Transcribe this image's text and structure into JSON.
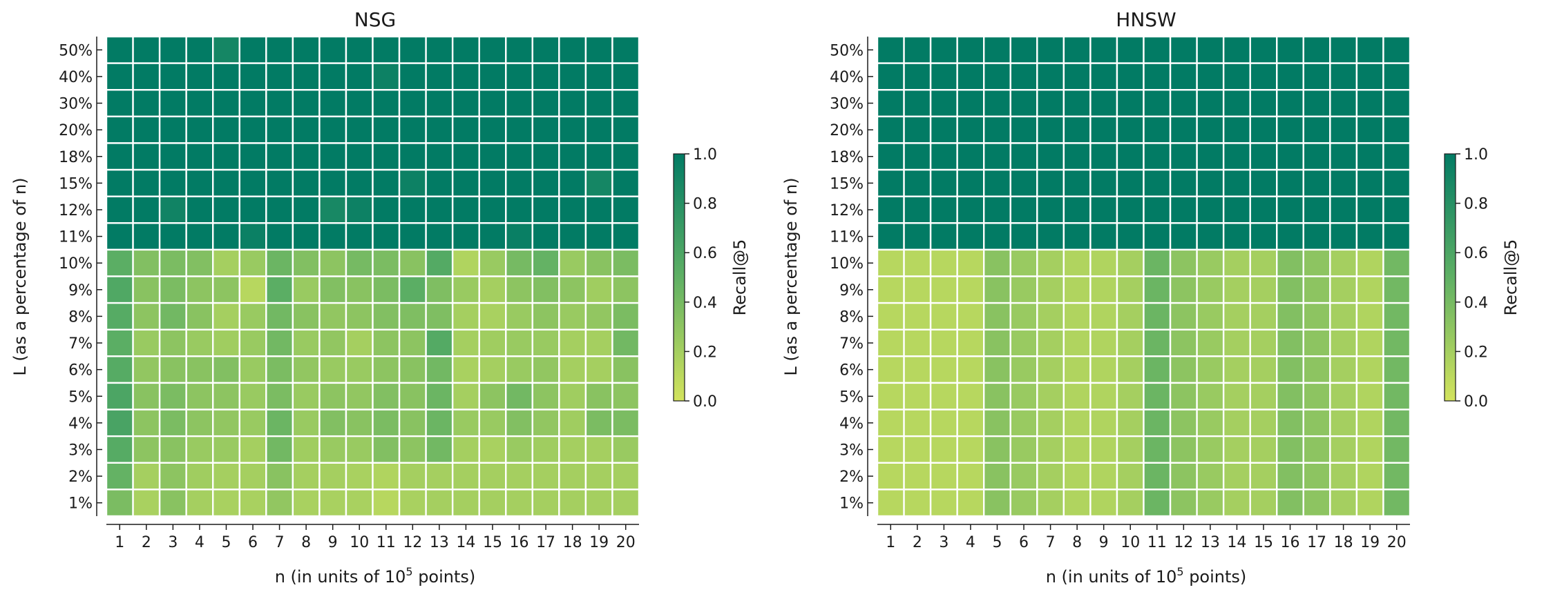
{
  "chart_data": [
    {
      "type": "heatmap",
      "title": "NSG",
      "xlabel": "n (in units of 10",
      "xlabel_sup": "5",
      "xlabel_tail": " points)",
      "ylabel": "L (as a percentage of n)",
      "x_categories": [
        "1",
        "2",
        "3",
        "4",
        "5",
        "6",
        "7",
        "8",
        "9",
        "10",
        "11",
        "12",
        "13",
        "14",
        "15",
        "16",
        "17",
        "18",
        "19",
        "20"
      ],
      "y_categories": [
        "50%",
        "40%",
        "30%",
        "20%",
        "18%",
        "15%",
        "12%",
        "11%",
        "10%",
        "9%",
        "8%",
        "7%",
        "6%",
        "5%",
        "4%",
        "3%",
        "2%",
        "1%"
      ],
      "values": [
        [
          1.0,
          1.0,
          1.0,
          1.0,
          0.9,
          1.0,
          1.0,
          1.0,
          1.0,
          1.0,
          1.0,
          1.0,
          1.0,
          1.0,
          1.0,
          1.0,
          1.0,
          1.0,
          1.0,
          1.0
        ],
        [
          1.0,
          1.0,
          1.0,
          1.0,
          1.0,
          1.0,
          1.0,
          1.0,
          1.0,
          1.0,
          0.94,
          1.0,
          1.0,
          1.0,
          1.0,
          1.0,
          1.0,
          1.0,
          1.0,
          1.0
        ],
        [
          1.0,
          1.0,
          1.0,
          1.0,
          1.0,
          1.0,
          1.0,
          1.0,
          1.0,
          1.0,
          1.0,
          1.0,
          1.0,
          1.0,
          1.0,
          1.0,
          1.0,
          1.0,
          1.0,
          1.0
        ],
        [
          1.0,
          1.0,
          1.0,
          1.0,
          1.0,
          1.0,
          1.0,
          1.0,
          1.0,
          1.0,
          1.0,
          1.0,
          1.0,
          1.0,
          1.0,
          1.0,
          1.0,
          1.0,
          1.0,
          1.0
        ],
        [
          1.0,
          1.0,
          1.0,
          1.0,
          1.0,
          1.0,
          1.0,
          1.0,
          1.0,
          1.0,
          1.0,
          1.0,
          1.0,
          1.0,
          1.0,
          1.0,
          1.0,
          1.0,
          1.0,
          1.0
        ],
        [
          1.0,
          1.0,
          1.0,
          1.0,
          1.0,
          1.0,
          1.0,
          1.0,
          1.0,
          1.0,
          1.0,
          0.94,
          1.0,
          1.0,
          1.0,
          1.0,
          1.0,
          1.0,
          0.9,
          1.0
        ],
        [
          1.0,
          1.0,
          0.92,
          1.0,
          1.0,
          1.0,
          1.0,
          1.0,
          0.88,
          0.94,
          1.0,
          1.0,
          1.0,
          1.0,
          1.0,
          1.0,
          1.0,
          1.0,
          1.0,
          1.0
        ],
        [
          1.0,
          1.0,
          1.0,
          1.0,
          1.0,
          0.95,
          1.0,
          1.0,
          1.0,
          1.0,
          1.0,
          1.0,
          1.0,
          1.0,
          1.0,
          0.96,
          1.0,
          1.0,
          1.0,
          1.0
        ],
        [
          0.52,
          0.35,
          0.38,
          0.35,
          0.2,
          0.25,
          0.45,
          0.35,
          0.3,
          0.4,
          0.38,
          0.32,
          0.56,
          0.15,
          0.25,
          0.4,
          0.48,
          0.25,
          0.32,
          0.38
        ],
        [
          0.58,
          0.32,
          0.38,
          0.3,
          0.3,
          0.12,
          0.52,
          0.25,
          0.35,
          0.32,
          0.38,
          0.52,
          0.36,
          0.25,
          0.2,
          0.3,
          0.35,
          0.3,
          0.22,
          0.3
        ],
        [
          0.55,
          0.3,
          0.42,
          0.32,
          0.2,
          0.25,
          0.42,
          0.32,
          0.28,
          0.3,
          0.35,
          0.36,
          0.36,
          0.2,
          0.18,
          0.25,
          0.3,
          0.25,
          0.28,
          0.38
        ],
        [
          0.52,
          0.25,
          0.3,
          0.25,
          0.22,
          0.25,
          0.42,
          0.25,
          0.28,
          0.2,
          0.3,
          0.3,
          0.56,
          0.2,
          0.22,
          0.25,
          0.25,
          0.2,
          0.2,
          0.42
        ],
        [
          0.55,
          0.28,
          0.32,
          0.32,
          0.35,
          0.25,
          0.38,
          0.28,
          0.25,
          0.25,
          0.3,
          0.32,
          0.42,
          0.18,
          0.2,
          0.25,
          0.28,
          0.2,
          0.2,
          0.32
        ],
        [
          0.6,
          0.32,
          0.38,
          0.3,
          0.3,
          0.25,
          0.38,
          0.25,
          0.3,
          0.28,
          0.35,
          0.32,
          0.45,
          0.2,
          0.3,
          0.42,
          0.3,
          0.22,
          0.32,
          0.3
        ],
        [
          0.62,
          0.3,
          0.38,
          0.3,
          0.28,
          0.25,
          0.45,
          0.25,
          0.35,
          0.32,
          0.38,
          0.32,
          0.45,
          0.25,
          0.25,
          0.35,
          0.28,
          0.22,
          0.38,
          0.38
        ],
        [
          0.55,
          0.3,
          0.32,
          0.25,
          0.25,
          0.2,
          0.42,
          0.22,
          0.25,
          0.25,
          0.35,
          0.3,
          0.42,
          0.2,
          0.18,
          0.25,
          0.22,
          0.2,
          0.2,
          0.25
        ],
        [
          0.48,
          0.2,
          0.3,
          0.22,
          0.2,
          0.2,
          0.32,
          0.2,
          0.2,
          0.18,
          0.15,
          0.2,
          0.2,
          0.2,
          0.2,
          0.2,
          0.2,
          0.2,
          0.2,
          0.2
        ],
        [
          0.38,
          0.18,
          0.32,
          0.2,
          0.18,
          0.18,
          0.28,
          0.18,
          0.18,
          0.18,
          0.12,
          0.18,
          0.2,
          0.2,
          0.2,
          0.2,
          0.2,
          0.2,
          0.2,
          0.2
        ]
      ],
      "colorbar": {
        "label": "Recall@5",
        "ticks": [
          "0.0",
          "0.2",
          "0.4",
          "0.6",
          "0.8",
          "1.0"
        ],
        "range": [
          0,
          1
        ]
      }
    },
    {
      "type": "heatmap",
      "title": "HNSW",
      "xlabel": "n (in units of 10",
      "xlabel_sup": "5",
      "xlabel_tail": " points)",
      "ylabel": "L (as a percentage of n)",
      "x_categories": [
        "1",
        "2",
        "3",
        "4",
        "5",
        "6",
        "7",
        "8",
        "9",
        "10",
        "11",
        "12",
        "13",
        "14",
        "15",
        "16",
        "17",
        "18",
        "19",
        "20"
      ],
      "y_categories": [
        "50%",
        "40%",
        "30%",
        "20%",
        "18%",
        "15%",
        "12%",
        "11%",
        "10%",
        "9%",
        "8%",
        "7%",
        "6%",
        "5%",
        "4%",
        "3%",
        "2%",
        "1%"
      ],
      "values": [
        [
          1,
          1,
          1,
          1,
          1,
          1,
          1,
          1,
          1,
          1,
          1,
          1,
          1,
          1,
          1,
          1,
          1,
          1,
          1,
          1
        ],
        [
          1,
          1,
          1,
          1,
          1,
          1,
          1,
          1,
          1,
          1,
          1,
          1,
          1,
          1,
          1,
          1,
          1,
          1,
          1,
          1
        ],
        [
          1,
          1,
          1,
          1,
          1,
          1,
          1,
          1,
          1,
          1,
          1,
          1,
          1,
          1,
          1,
          1,
          1,
          1,
          1,
          1
        ],
        [
          1,
          1,
          1,
          1,
          1,
          1,
          1,
          1,
          1,
          1,
          1,
          1,
          1,
          1,
          1,
          1,
          1,
          1,
          1,
          1
        ],
        [
          1,
          1,
          1,
          1,
          1,
          1,
          1,
          1,
          1,
          1,
          1,
          1,
          1,
          1,
          1,
          1,
          1,
          1,
          1,
          1
        ],
        [
          1,
          1,
          1,
          1,
          1,
          1,
          1,
          1,
          1,
          1,
          1,
          1,
          1,
          1,
          1,
          1,
          1,
          1,
          1,
          1
        ],
        [
          1,
          1,
          1,
          1,
          1,
          1,
          1,
          1,
          1,
          1,
          1,
          1,
          1,
          1,
          1,
          1,
          1,
          1,
          1,
          1
        ],
        [
          1,
          1,
          1,
          1,
          1,
          1,
          1,
          1,
          1,
          1,
          1,
          1,
          1,
          1,
          1,
          1,
          1,
          1,
          1,
          1
        ],
        [
          0.12,
          0.12,
          0.12,
          0.12,
          0.32,
          0.25,
          0.2,
          0.15,
          0.15,
          0.2,
          0.45,
          0.3,
          0.25,
          0.2,
          0.2,
          0.35,
          0.3,
          0.2,
          0.15,
          0.42
        ],
        [
          0.12,
          0.12,
          0.12,
          0.12,
          0.32,
          0.25,
          0.2,
          0.15,
          0.15,
          0.2,
          0.45,
          0.3,
          0.25,
          0.2,
          0.2,
          0.35,
          0.3,
          0.2,
          0.15,
          0.42
        ],
        [
          0.12,
          0.12,
          0.12,
          0.12,
          0.32,
          0.25,
          0.2,
          0.15,
          0.15,
          0.2,
          0.45,
          0.3,
          0.25,
          0.2,
          0.2,
          0.35,
          0.3,
          0.2,
          0.15,
          0.42
        ],
        [
          0.12,
          0.12,
          0.12,
          0.12,
          0.32,
          0.25,
          0.2,
          0.15,
          0.15,
          0.2,
          0.45,
          0.3,
          0.25,
          0.2,
          0.2,
          0.35,
          0.3,
          0.2,
          0.15,
          0.42
        ],
        [
          0.12,
          0.12,
          0.12,
          0.12,
          0.32,
          0.25,
          0.2,
          0.15,
          0.15,
          0.2,
          0.45,
          0.3,
          0.25,
          0.2,
          0.2,
          0.35,
          0.3,
          0.2,
          0.15,
          0.42
        ],
        [
          0.12,
          0.12,
          0.12,
          0.12,
          0.32,
          0.25,
          0.2,
          0.15,
          0.15,
          0.2,
          0.45,
          0.3,
          0.25,
          0.2,
          0.2,
          0.35,
          0.3,
          0.2,
          0.15,
          0.42
        ],
        [
          0.12,
          0.12,
          0.12,
          0.12,
          0.32,
          0.25,
          0.2,
          0.15,
          0.15,
          0.2,
          0.45,
          0.3,
          0.25,
          0.2,
          0.2,
          0.35,
          0.3,
          0.2,
          0.15,
          0.42
        ],
        [
          0.12,
          0.12,
          0.12,
          0.12,
          0.32,
          0.25,
          0.2,
          0.15,
          0.15,
          0.2,
          0.45,
          0.3,
          0.25,
          0.2,
          0.2,
          0.35,
          0.3,
          0.2,
          0.15,
          0.42
        ],
        [
          0.12,
          0.12,
          0.12,
          0.12,
          0.32,
          0.25,
          0.2,
          0.15,
          0.15,
          0.2,
          0.45,
          0.3,
          0.25,
          0.2,
          0.2,
          0.35,
          0.3,
          0.2,
          0.15,
          0.42
        ],
        [
          0.12,
          0.12,
          0.12,
          0.12,
          0.32,
          0.25,
          0.2,
          0.15,
          0.15,
          0.2,
          0.45,
          0.3,
          0.25,
          0.2,
          0.2,
          0.35,
          0.3,
          0.2,
          0.15,
          0.42
        ]
      ],
      "colorbar": {
        "label": "Recall@5",
        "ticks": [
          "0.0",
          "0.2",
          "0.4",
          "0.6",
          "0.8",
          "1.0"
        ],
        "range": [
          0,
          1
        ]
      }
    }
  ],
  "colormap": {
    "low": "#d3e35d",
    "mid": "#5fb064",
    "high": "#027b64",
    "grid_line": "#ffffff"
  }
}
